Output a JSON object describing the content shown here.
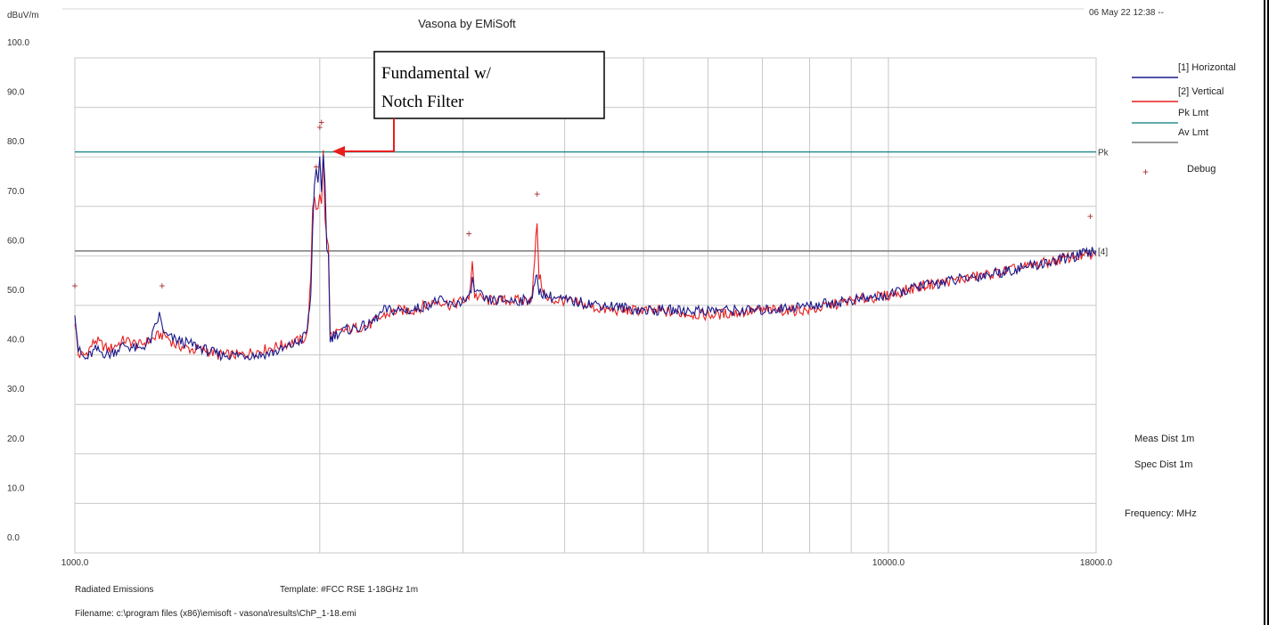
{
  "chart_data": {
    "type": "line",
    "title": "Vasona by EMiSoft",
    "timestamp": "06 May 22 12:38 --",
    "ylabel": "dBuV/m",
    "xlabel": "Frequency: MHz",
    "x_scale": "log",
    "xlim": [
      1000,
      18000
    ],
    "ylim": [
      0,
      100
    ],
    "y_ticks": [
      "0.0",
      "10.0",
      "20.0",
      "30.0",
      "40.0",
      "50.0",
      "60.0",
      "70.0",
      "80.0",
      "90.0",
      "100.0"
    ],
    "x_tick_labels": [
      {
        "value": 1000,
        "label": "1000.0"
      },
      {
        "value": 10000,
        "label": "10000.0"
      },
      {
        "value": 18000,
        "label": "18000.0"
      }
    ],
    "grid": true,
    "legend_position": "right",
    "legend": [
      {
        "label": "[1] Horizontal",
        "color": "#1a1a8c",
        "kind": "line"
      },
      {
        "label": "[2] Vertical",
        "color": "#e81e1e",
        "kind": "line"
      },
      {
        "label": "Pk Lmt",
        "color": "#2b8f8f",
        "kind": "line"
      },
      {
        "label": "Av Lmt",
        "color": "#7a7a7a",
        "kind": "line"
      },
      {
        "label": "Debug",
        "color": "#a52a2a",
        "kind": "marker"
      }
    ],
    "limits": [
      {
        "name": "Pk Lmt",
        "value": 81.0,
        "end_label": "Pk"
      },
      {
        "name": "Av Lmt",
        "value": 61.0,
        "end_label": "[4]"
      }
    ],
    "series": [
      {
        "name": "[1] Horizontal",
        "color": "#1a1a8c",
        "points": [
          [
            1000,
            49
          ],
          [
            1010,
            41
          ],
          [
            1030,
            39
          ],
          [
            1060,
            41
          ],
          [
            1100,
            40
          ],
          [
            1150,
            42
          ],
          [
            1200,
            41
          ],
          [
            1240,
            43
          ],
          [
            1270,
            48
          ],
          [
            1290,
            44
          ],
          [
            1330,
            43
          ],
          [
            1400,
            42
          ],
          [
            1450,
            41
          ],
          [
            1500,
            40
          ],
          [
            1550,
            40
          ],
          [
            1600,
            40
          ],
          [
            1700,
            40
          ],
          [
            1800,
            41
          ],
          [
            1900,
            43
          ],
          [
            1930,
            45
          ],
          [
            1950,
            52
          ],
          [
            1960,
            65
          ],
          [
            1970,
            75
          ],
          [
            1980,
            78
          ],
          [
            1990,
            74
          ],
          [
            2000,
            79
          ],
          [
            2010,
            72
          ],
          [
            2020,
            80
          ],
          [
            2030,
            75
          ],
          [
            2040,
            62
          ],
          [
            2050,
            60
          ],
          [
            2060,
            43
          ],
          [
            2080,
            44
          ],
          [
            2150,
            45
          ],
          [
            2300,
            46
          ],
          [
            2400,
            49
          ],
          [
            2500,
            49
          ],
          [
            2600,
            49
          ],
          [
            2700,
            50
          ],
          [
            2800,
            51
          ],
          [
            2900,
            50
          ],
          [
            3000,
            51
          ],
          [
            3050,
            51
          ],
          [
            3080,
            55
          ],
          [
            3100,
            53
          ],
          [
            3200,
            51
          ],
          [
            3400,
            51
          ],
          [
            3600,
            51
          ],
          [
            3650,
            52
          ],
          [
            3700,
            56
          ],
          [
            3720,
            53
          ],
          [
            3800,
            52
          ],
          [
            4000,
            51
          ],
          [
            4500,
            50
          ],
          [
            5000,
            49
          ],
          [
            6000,
            49
          ],
          [
            7000,
            49
          ],
          [
            8000,
            50
          ],
          [
            9000,
            51
          ],
          [
            10000,
            52
          ],
          [
            11000,
            54
          ],
          [
            12000,
            55
          ],
          [
            13000,
            56
          ],
          [
            14000,
            57
          ],
          [
            15000,
            58
          ],
          [
            16000,
            59
          ],
          [
            17000,
            60
          ],
          [
            18000,
            61
          ]
        ]
      },
      {
        "name": "[2] Vertical",
        "color": "#e81e1e",
        "points": [
          [
            1000,
            47
          ],
          [
            1010,
            40
          ],
          [
            1030,
            40
          ],
          [
            1060,
            43
          ],
          [
            1100,
            41
          ],
          [
            1150,
            43
          ],
          [
            1200,
            42
          ],
          [
            1240,
            43
          ],
          [
            1270,
            44
          ],
          [
            1290,
            44
          ],
          [
            1330,
            42
          ],
          [
            1400,
            41
          ],
          [
            1450,
            41
          ],
          [
            1500,
            40
          ],
          [
            1550,
            40
          ],
          [
            1600,
            40
          ],
          [
            1700,
            41
          ],
          [
            1800,
            42
          ],
          [
            1900,
            43
          ],
          [
            1930,
            44
          ],
          [
            1950,
            55
          ],
          [
            1960,
            70
          ],
          [
            1970,
            72
          ],
          [
            1980,
            70
          ],
          [
            1990,
            70
          ],
          [
            2000,
            73
          ],
          [
            2010,
            70
          ],
          [
            2020,
            81
          ],
          [
            2030,
            68
          ],
          [
            2040,
            63
          ],
          [
            2050,
            62
          ],
          [
            2060,
            44
          ],
          [
            2080,
            44
          ],
          [
            2150,
            45
          ],
          [
            2300,
            46
          ],
          [
            2400,
            48
          ],
          [
            2500,
            49
          ],
          [
            2600,
            49
          ],
          [
            2700,
            50
          ],
          [
            2800,
            51
          ],
          [
            2900,
            50
          ],
          [
            3000,
            51
          ],
          [
            3050,
            51
          ],
          [
            3080,
            59
          ],
          [
            3100,
            52
          ],
          [
            3200,
            51
          ],
          [
            3400,
            51
          ],
          [
            3600,
            51
          ],
          [
            3650,
            52
          ],
          [
            3700,
            67
          ],
          [
            3720,
            56
          ],
          [
            3800,
            51
          ],
          [
            4000,
            51
          ],
          [
            4500,
            49
          ],
          [
            5000,
            49
          ],
          [
            6000,
            48
          ],
          [
            7000,
            49
          ],
          [
            8000,
            49
          ],
          [
            9000,
            51
          ],
          [
            10000,
            52
          ],
          [
            11000,
            54
          ],
          [
            12000,
            55
          ],
          [
            13000,
            56
          ],
          [
            14000,
            57
          ],
          [
            15000,
            58
          ],
          [
            16000,
            59
          ],
          [
            17000,
            60
          ],
          [
            18000,
            60
          ]
        ]
      }
    ],
    "debug_markers": [
      {
        "x": 1000,
        "y": 54
      },
      {
        "x": 1280,
        "y": 54
      },
      {
        "x": 1980,
        "y": 78
      },
      {
        "x": 2000,
        "y": 86
      },
      {
        "x": 2010,
        "y": 87
      },
      {
        "x": 3050,
        "y": 64.5
      },
      {
        "x": 3700,
        "y": 72.5
      },
      {
        "x": 17700,
        "y": 68
      }
    ],
    "annotations": [
      {
        "text_lines": [
          "Fundamental w/",
          "Notch Filter"
        ],
        "arrow_color": "#e81e1e",
        "points_to": {
          "x": 2060,
          "y": 74
        }
      }
    ]
  },
  "notes": {
    "meas_dist": "Meas Dist 1m",
    "spec_dist": "Spec Dist 1m",
    "frequency_label": "Frequency: MHz"
  },
  "footer": {
    "test_type": "Radiated Emissions",
    "template": "Template: #FCC RSE 1-18GHz 1m",
    "filename": "Filename: c:\\program files (x86)\\emisoft - vasona\\results\\ChP_1-18.emi"
  }
}
